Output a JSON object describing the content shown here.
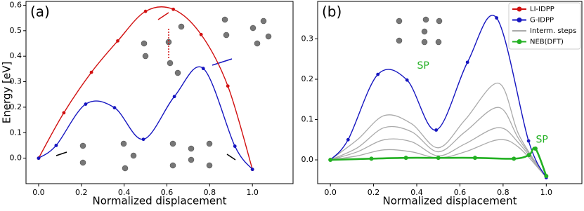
{
  "chart_data": [
    {
      "type": "line",
      "panel_label": "(a)",
      "xlabel": "Normalized displacement",
      "ylabel": "Energy [eV]",
      "xlim": [
        -0.059,
        1.19
      ],
      "ylim": [
        -0.1,
        0.615
      ],
      "xticks": [
        {
          "value": 0,
          "label": "0.0"
        },
        0.2,
        0.4,
        0.6,
        0.8,
        {
          "value": 1,
          "label": "1.0"
        }
      ],
      "yticks": [
        {
          "value": 0,
          "label": "0.0"
        },
        0.1,
        0.2,
        0.3,
        0.4,
        0.5,
        0.6
      ],
      "series": [
        {
          "name": "LI-IDPP",
          "color": "#d11010",
          "x": [
            0,
            0.118,
            0.247,
            0.37,
            0.5,
            0.63,
            0.76,
            0.885,
            1.0
          ],
          "values": [
            0,
            0.178,
            0.337,
            0.46,
            0.576,
            0.584,
            0.485,
            0.283,
            -0.044
          ]
        },
        {
          "name": "G-IDPP",
          "color": "#1515c0",
          "x": [
            0,
            0.082,
            0.22,
            0.355,
            0.49,
            0.635,
            0.77,
            0.918,
            1.0
          ],
          "values": [
            0,
            0.05,
            0.212,
            0.198,
            0.074,
            0.242,
            0.352,
            0.047,
            -0.044
          ]
        }
      ]
    },
    {
      "type": "line",
      "panel_label": "(b)",
      "xlabel": "Normalized displacement",
      "xlim": [
        -0.059,
        1.165
      ],
      "ylim": [
        -0.059,
        0.393
      ],
      "xticks": [
        {
          "value": 0,
          "label": "0.0"
        },
        0.2,
        0.4,
        0.6,
        0.8,
        {
          "value": 1,
          "label": "1.0"
        }
      ],
      "yticks": [
        {
          "value": 0,
          "label": "0.0"
        },
        0.1,
        0.2,
        0.3
      ],
      "series": [
        {
          "name": "Interm. steps",
          "color": "#aaaaaa",
          "x": [
            0,
            0.125,
            0.25,
            0.375,
            0.5,
            0.625,
            0.78,
            0.875,
            1.0
          ],
          "curves": [
            [
              0,
              0.05,
              0.11,
              0.09,
              0.03,
              0.1,
              0.19,
              0.06,
              -0.044
            ],
            [
              0,
              0.03,
              0.08,
              0.07,
              0.02,
              0.07,
              0.13,
              0.05,
              -0.044
            ],
            [
              0,
              0.02,
              0.05,
              0.045,
              0.01,
              0.04,
              0.08,
              0.04,
              -0.044
            ],
            [
              0,
              0.01,
              0.025,
              0.02,
              0.005,
              0.02,
              0.05,
              0.03,
              -0.044
            ]
          ]
        },
        {
          "name": "G-IDPP",
          "color": "#1515c0",
          "x": [
            0,
            0.082,
            0.22,
            0.355,
            0.49,
            0.635,
            0.77,
            0.918,
            1.0
          ],
          "values": [
            0,
            0.05,
            0.212,
            0.198,
            0.074,
            0.242,
            0.352,
            0.047,
            -0.044
          ]
        },
        {
          "name": "NEB(DFT)",
          "color": "#22b022",
          "x": [
            0,
            0.19,
            0.35,
            0.5,
            0.67,
            0.85,
            0.92,
            0.95,
            1.0
          ],
          "values": [
            0,
            0.003,
            0.005,
            0.005,
            0.005,
            0.003,
            0.012,
            0.028,
            -0.04
          ]
        }
      ],
      "legend": "upper right",
      "legend_entries": [
        {
          "name": "LI-IDPP",
          "color": "#d11010"
        },
        {
          "name": "G-IDPP",
          "color": "#1515c0"
        },
        {
          "name": "Interm. steps",
          "color": "#aaaaaa"
        },
        {
          "name": "NEB(DFT)",
          "color": "#22b022"
        }
      ],
      "annotations": [
        {
          "text": "SP",
          "x": 0.43,
          "y": 0.233,
          "color": "#22b022"
        },
        {
          "text": "SP",
          "x": 0.98,
          "y": 0.05,
          "color": "#22b022"
        }
      ]
    }
  ]
}
